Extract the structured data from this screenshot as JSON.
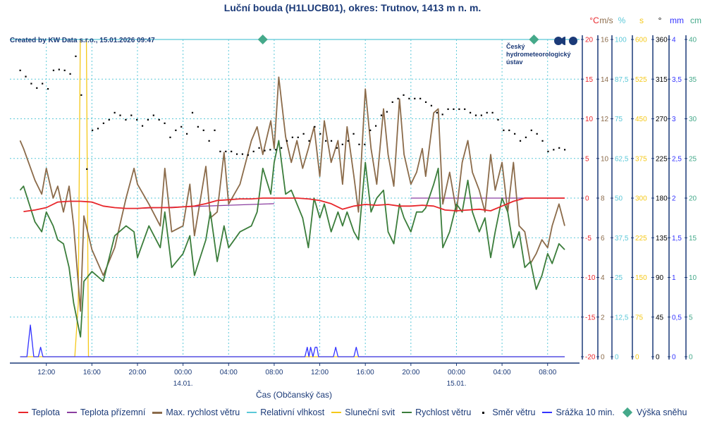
{
  "colors": {
    "axis": "#1b3a78",
    "grid": "#5bc8d8",
    "temp": "#e8262b",
    "ground": "#8b3fa0",
    "gust": "#8b6b4a",
    "humidity": "#5bc8d8",
    "sun": "#f5c818",
    "wind": "#3b7d3b",
    "dir": "#000000",
    "precip": "#3333ff",
    "snow": "#45a98a"
  },
  "header": {
    "title": "Luční bouda (H1LUCB01), okres: Trutnov, 1413 m n. m.",
    "credit": "Created by KW Data s.r.o., 15.01.2026 09:47"
  },
  "logo": {
    "line1": "Český",
    "line2": "hydrometeorologický",
    "line3": "ústav"
  },
  "chart_data": {
    "type": "line",
    "title": "Luční bouda (H1LUCB01), okres: Trutnov, 1413 m n. m.",
    "xlabel": "Čas (Občanský čas)",
    "x_unit": "hours since 13.01. 00:00",
    "xlim": [
      8.8,
      58.8
    ],
    "x_ticks": [
      {
        "t": 12,
        "label": "12:00"
      },
      {
        "t": 16,
        "label": "16:00"
      },
      {
        "t": 20,
        "label": "20:00"
      },
      {
        "t": 24,
        "label": "00:00",
        "date": "14.01."
      },
      {
        "t": 28,
        "label": "04:00"
      },
      {
        "t": 32,
        "label": "08:00"
      },
      {
        "t": 36,
        "label": "12:00"
      },
      {
        "t": 40,
        "label": "16:00"
      },
      {
        "t": 44,
        "label": "20:00"
      },
      {
        "t": 48,
        "label": "00:00",
        "date": "15.01."
      },
      {
        "t": 52,
        "label": "04:00"
      },
      {
        "t": 56,
        "label": "08:00"
      }
    ],
    "grid": true,
    "legend_position": "bottom",
    "axes": [
      {
        "id": "temp",
        "unit": "°C",
        "range": [
          -20,
          20
        ],
        "ticks": [
          "20",
          "15",
          "10",
          "5",
          "0",
          "-5",
          "-10",
          "-15",
          "-20"
        ]
      },
      {
        "id": "wind",
        "unit": "m/s",
        "range": [
          0,
          16
        ],
        "ticks": [
          "16",
          "14",
          "12",
          "10",
          "8",
          "6",
          "4",
          "2",
          "0"
        ]
      },
      {
        "id": "hum",
        "unit": "%",
        "range": [
          0,
          100
        ],
        "ticks": [
          "100",
          "87,5",
          "75",
          "62,5",
          "50",
          "37,5",
          "25",
          "12,5",
          "0"
        ]
      },
      {
        "id": "sun",
        "unit": "s",
        "range": [
          0,
          600
        ],
        "ticks": [
          "600",
          "525",
          "450",
          "375",
          "300",
          "225",
          "150",
          "75",
          "0"
        ]
      },
      {
        "id": "dir",
        "unit": "°",
        "range": [
          0,
          360
        ],
        "ticks": [
          "360",
          "315",
          "270",
          "225",
          "180",
          "135",
          "90",
          "45",
          "0"
        ]
      },
      {
        "id": "precip",
        "unit": "mm",
        "range": [
          0,
          4
        ],
        "ticks": [
          "4",
          "3,5",
          "3",
          "2,5",
          "2",
          "1,5",
          "1",
          "0,5",
          "0"
        ]
      },
      {
        "id": "snow",
        "unit": "cm",
        "range": [
          0,
          40
        ],
        "ticks": [
          "40",
          "35",
          "30",
          "25",
          "20",
          "15",
          "10",
          "5",
          "0"
        ]
      }
    ],
    "series": [
      {
        "name": "Teplota",
        "axis": "temp",
        "t": [
          10,
          11,
          12,
          13,
          14,
          15,
          16,
          17,
          18,
          19,
          20,
          21,
          22,
          23,
          24,
          25,
          26,
          27,
          28,
          29,
          30,
          31,
          32,
          33,
          34,
          35,
          36,
          37,
          38,
          39,
          40,
          41,
          42,
          43,
          44,
          45,
          46,
          47,
          48,
          49,
          50,
          51,
          52,
          53,
          54,
          55,
          56,
          57,
          57.5
        ],
        "values": [
          -1.7,
          -1.5,
          -1.2,
          -0.5,
          -0.4,
          -0.4,
          -0.5,
          -1.0,
          -1.2,
          -1.3,
          -1.3,
          -1.2,
          -1.2,
          -1.2,
          -1.1,
          -1.0,
          -0.7,
          -0.3,
          -0.2,
          -0.1,
          -0.1,
          0,
          0,
          0,
          0,
          -0.1,
          -0.3,
          -0.7,
          -1.4,
          -1.0,
          -0.8,
          -0.9,
          -0.8,
          -1.0,
          -1.0,
          -0.9,
          -1.0,
          -1.5,
          -1.6,
          -1.5,
          -1.4,
          -1.6,
          -1.0,
          -0.4,
          0,
          0,
          0,
          0,
          0
        ]
      },
      {
        "name": "Teplota přízemní",
        "axis": "temp",
        "t": [
          20,
          22,
          24,
          26,
          28,
          30,
          32,
          null,
          44,
          46,
          48,
          50,
          52,
          54,
          56,
          57.5
        ],
        "values": [
          -1.3,
          -1.2,
          -1.1,
          -1.0,
          -0.9,
          -0.8,
          -0.7,
          null,
          0,
          0,
          0,
          0,
          0,
          0,
          0,
          0
        ]
      },
      {
        "name": "Max. rychlost větru",
        "axis": "wind",
        "t": [
          9.7,
          10.0,
          11.0,
          11.6,
          12.0,
          12.6,
          13.0,
          13.5,
          14.0,
          14.4,
          15.0,
          15.3,
          16.0,
          17.0,
          18.0,
          19.0,
          19.7,
          20.0,
          21.0,
          22.0,
          22.4,
          23.0,
          24.0,
          24.6,
          25.0,
          26.0,
          26.4,
          27.0,
          27.6,
          28.0,
          29.0,
          30.0,
          30.5,
          31.0,
          31.7,
          32.0,
          32.4,
          33.0,
          33.5,
          34.0,
          34.5,
          35.0,
          35.5,
          36.0,
          36.4,
          37.0,
          37.6,
          38.0,
          38.4,
          39.0,
          39.4,
          40.0,
          40.5,
          41.0,
          41.6,
          42.0,
          42.5,
          43.0,
          43.4,
          44.0,
          44.5,
          45.0,
          45.3,
          46.0,
          46.4,
          46.8,
          47.4,
          48.0,
          48.5,
          49.0,
          49.4,
          50.0,
          50.5,
          51.0,
          51.4,
          52.0,
          52.5,
          53.0,
          53.5,
          54.0,
          54.5,
          55.0,
          55.5,
          56.0,
          56.4,
          57.0,
          57.5
        ],
        "values": [
          10.9,
          10.5,
          8.9,
          8.2,
          9.5,
          8.0,
          8.6,
          7.3,
          8.6,
          6.6,
          2.3,
          7.1,
          5.4,
          4.1,
          5.5,
          8.0,
          9.5,
          8.7,
          7.7,
          6.6,
          9.5,
          6.3,
          6.6,
          8.7,
          6.1,
          9.6,
          7.0,
          7.3,
          10.3,
          7.7,
          8.7,
          10.9,
          11.6,
          10.2,
          11.9,
          10.5,
          14.1,
          11.1,
          9.8,
          10.9,
          9.5,
          10.5,
          11.6,
          9.1,
          11.9,
          9.8,
          10.9,
          8.7,
          11.6,
          9.1,
          7.3,
          13.5,
          10.5,
          8.7,
          12.5,
          10.2,
          8.6,
          13.0,
          10.2,
          8.7,
          9.3,
          10.5,
          9.1,
          12.3,
          12.5,
          7.7,
          9.3,
          7.3,
          9.8,
          10.9,
          9.3,
          8.4,
          7.3,
          10.2,
          8.4,
          9.8,
          7.3,
          9.8,
          6.6,
          6.3,
          4.7,
          5.2,
          5.9,
          5.5,
          6.6,
          7.7,
          6.6
        ]
      },
      {
        "name": "Relativní vlhkost",
        "axis": "hum",
        "t": [
          8.8,
          58.8
        ],
        "values": [
          100,
          100
        ]
      },
      {
        "name": "Sluneční svit",
        "axis": "sun",
        "t": [
          9.7,
          14.5,
          14.8,
          15.0,
          15.5,
          15.7,
          57.5
        ],
        "values": [
          0,
          0,
          100,
          650,
          650,
          0,
          0
        ]
      },
      {
        "name": "Rychlost větru",
        "axis": "wind",
        "t": [
          9.7,
          10.0,
          11.0,
          11.6,
          12.0,
          12.6,
          13.0,
          13.5,
          14.0,
          14.4,
          15.0,
          15.3,
          16.0,
          17.0,
          18.0,
          19.0,
          19.7,
          20.0,
          21.0,
          22.0,
          22.4,
          23.0,
          24.0,
          24.6,
          25.0,
          26.0,
          26.4,
          27.0,
          27.6,
          28.0,
          29.0,
          30.0,
          30.5,
          31.0,
          31.7,
          32.0,
          32.4,
          33.0,
          33.5,
          34.0,
          34.5,
          35.0,
          35.5,
          36.0,
          36.4,
          37.0,
          37.6,
          38.0,
          38.4,
          39.0,
          39.4,
          40.0,
          40.5,
          41.0,
          41.6,
          42.0,
          42.5,
          43.0,
          43.4,
          44.0,
          44.5,
          45.0,
          45.3,
          46.0,
          46.4,
          46.8,
          47.4,
          48.0,
          48.5,
          49.0,
          49.4,
          50.0,
          50.5,
          51.0,
          51.4,
          52.0,
          52.5,
          53.0,
          53.5,
          54.0,
          54.5,
          55.0,
          55.5,
          56.0,
          56.4,
          57.0,
          57.5
        ],
        "values": [
          8.4,
          8.6,
          6.8,
          6.3,
          7.3,
          6.6,
          5.9,
          5.7,
          4.5,
          2.7,
          1.0,
          3.8,
          4.3,
          3.8,
          6.1,
          6.6,
          6.3,
          5.0,
          6.6,
          5.5,
          7.3,
          4.5,
          5.2,
          6.1,
          4.1,
          5.9,
          7.3,
          4.8,
          6.6,
          5.5,
          6.3,
          6.6,
          7.3,
          9.5,
          8.2,
          9.8,
          10.9,
          8.2,
          8.4,
          7.7,
          7.0,
          5.5,
          8.0,
          7.0,
          7.7,
          6.3,
          7.3,
          6.6,
          7.3,
          6.3,
          5.9,
          9.8,
          7.3,
          8.0,
          8.4,
          6.3,
          5.7,
          7.7,
          7.0,
          6.3,
          7.3,
          7.3,
          7.5,
          8.7,
          9.5,
          5.5,
          6.3,
          7.7,
          7.3,
          8.9,
          7.3,
          6.3,
          7.0,
          5.0,
          6.3,
          8.0,
          7.3,
          5.5,
          6.3,
          4.5,
          4.8,
          3.4,
          4.1,
          5.2,
          4.7,
          5.7,
          5.4
        ]
      },
      {
        "name": "Směr větru",
        "axis": "dir",
        "style": "dots",
        "t_start": 9.7,
        "t_end": 57.5,
        "values": [
          325,
          318,
          310,
          305,
          310,
          304,
          325,
          326,
          325,
          321,
          341,
          297,
          213,
          257,
          259,
          265,
          269,
          277,
          274,
          269,
          274,
          269,
          262,
          269,
          274,
          269,
          265,
          249,
          257,
          261,
          253,
          277,
          261,
          257,
          245,
          257,
          233,
          233,
          233,
          230,
          230,
          229,
          233,
          237,
          234,
          235,
          235,
          237,
          245,
          249,
          249,
          253,
          245,
          261,
          253,
          245,
          245,
          237,
          241,
          245,
          253,
          241,
          241,
          257,
          262,
          274,
          278,
          289,
          293,
          297,
          293,
          293,
          293,
          289,
          285,
          277,
          275,
          281,
          281,
          281,
          281,
          277,
          274,
          274,
          277,
          277,
          269,
          257,
          257,
          253,
          245,
          249,
          257,
          253,
          245,
          233,
          235,
          237,
          235
        ]
      },
      {
        "name": "Srážka 10 min.",
        "axis": "precip",
        "t": [
          9.7,
          10.3,
          10.6,
          10.9,
          11.3,
          11.5,
          11.7,
          34.7,
          34.9,
          35.05,
          35.2,
          35.4,
          35.6,
          35.75,
          35.9,
          37.2,
          37.4,
          37.6,
          39.0,
          39.2,
          39.4,
          57.5
        ],
        "values": [
          0,
          0,
          0.4,
          0,
          0,
          0.12,
          0,
          0,
          0.12,
          0,
          0.12,
          0,
          0.12,
          0.12,
          0,
          0,
          0.12,
          0,
          0,
          0.12,
          0,
          0
        ]
      },
      {
        "name": "Výška sněhu",
        "axis": "snow",
        "style": "diamonds",
        "t": [
          31.0,
          54.8
        ],
        "values": [
          40,
          40
        ]
      }
    ]
  },
  "legend": [
    {
      "label": "Teplota",
      "kind": "line",
      "color": "#e8262b"
    },
    {
      "label": "Teplota přízemní",
      "kind": "line",
      "color": "#8b3fa0"
    },
    {
      "label": "Max. rychlost větru",
      "kind": "line",
      "color": "#8b6b4a"
    },
    {
      "label": "Relativní vlhkost",
      "kind": "line",
      "color": "#5bc8d8"
    },
    {
      "label": "Sluneční svit",
      "kind": "line",
      "color": "#f5c818"
    },
    {
      "label": "Rychlost větru",
      "kind": "line",
      "color": "#3b7d3b"
    },
    {
      "label": "Směr větru",
      "kind": "dot",
      "color": "#000000"
    },
    {
      "label": "Srážka 10 min.",
      "kind": "line",
      "color": "#3333ff"
    },
    {
      "label": "Výška sněhu",
      "kind": "diamond",
      "color": "#45a98a"
    }
  ]
}
